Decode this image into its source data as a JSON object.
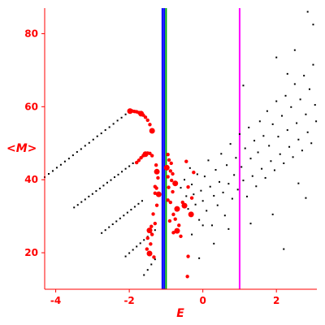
{
  "chart_data": {
    "type": "scatter",
    "xlabel": "E",
    "ylabel": "<M>",
    "xlim": [
      -4.3,
      3.1
    ],
    "ylim": [
      10,
      87
    ],
    "x_ticks": [
      -4,
      -2,
      0,
      2
    ],
    "y_ticks": [
      20,
      40,
      60,
      80
    ],
    "tick_labels": {
      "x": [
        "-4",
        "-2",
        "0",
        "2"
      ],
      "y": [
        "20",
        "40",
        "60",
        "80"
      ]
    },
    "grid": false,
    "legend": "none",
    "colors": {
      "axis": "#ff0000",
      "curve_points": "#000000",
      "highlight_points": "#ff0000",
      "scatter_points": "#000000",
      "line_blue": "#0000ff",
      "line_green": "#00aa00",
      "line_magenta": "#ff00ff"
    },
    "vertical_lines": [
      {
        "x": -1.1,
        "color": "#0000ff"
      },
      {
        "x": -1.05,
        "color": "#0000ff"
      },
      {
        "x": -1.0,
        "color": "#00aa00"
      },
      {
        "x": 1.0,
        "color": "#ff00ff"
      }
    ],
    "series": [
      {
        "color": "#000000",
        "marker": "dot",
        "points": [
          [
            -4.3,
            40.7
          ],
          [
            -4.19,
            41.6
          ],
          [
            -4.08,
            42.4
          ],
          [
            -3.97,
            43.3
          ],
          [
            -3.86,
            44.1
          ],
          [
            -3.75,
            45.0
          ],
          [
            -3.64,
            45.8
          ],
          [
            -3.53,
            46.7
          ],
          [
            -3.42,
            47.6
          ],
          [
            -3.31,
            48.4
          ],
          [
            -3.2,
            49.3
          ],
          [
            -3.09,
            50.1
          ],
          [
            -2.98,
            51.0
          ],
          [
            -2.87,
            51.9
          ],
          [
            -2.76,
            52.7
          ],
          [
            -2.65,
            53.6
          ],
          [
            -2.54,
            54.4
          ],
          [
            -2.43,
            55.3
          ],
          [
            -2.32,
            56.2
          ],
          [
            -2.21,
            57.0
          ],
          [
            -2.1,
            57.9
          ],
          [
            -2.0,
            58.8
          ],
          [
            -3.5,
            32.4
          ],
          [
            -3.4,
            33.1
          ],
          [
            -3.3,
            33.9
          ],
          [
            -3.2,
            34.6
          ],
          [
            -3.1,
            35.4
          ],
          [
            -3.0,
            36.1
          ],
          [
            -2.9,
            36.9
          ],
          [
            -2.8,
            37.6
          ],
          [
            -2.7,
            38.4
          ],
          [
            -2.6,
            39.2
          ],
          [
            -2.5,
            39.9
          ],
          [
            -2.4,
            40.7
          ],
          [
            -2.3,
            41.4
          ],
          [
            -2.2,
            42.2
          ],
          [
            -2.1,
            43.0
          ],
          [
            -2.0,
            43.7
          ],
          [
            -1.9,
            44.5
          ],
          [
            -2.75,
            25.4
          ],
          [
            -2.65,
            26.2
          ],
          [
            -2.55,
            27.0
          ],
          [
            -2.45,
            27.8
          ],
          [
            -2.35,
            28.6
          ],
          [
            -2.25,
            29.4
          ],
          [
            -2.15,
            30.2
          ],
          [
            -2.05,
            31.0
          ],
          [
            -1.95,
            31.8
          ],
          [
            -1.85,
            32.6
          ],
          [
            -1.75,
            33.4
          ],
          [
            -1.65,
            34.2
          ],
          [
            -2.1,
            19.0
          ],
          [
            -2.0,
            19.9
          ],
          [
            -1.9,
            20.8
          ],
          [
            -1.8,
            21.7
          ],
          [
            -1.7,
            22.6
          ],
          [
            -1.6,
            23.5
          ],
          [
            -1.5,
            24.4
          ],
          [
            -1.4,
            25.3
          ],
          [
            -1.3,
            26.2
          ],
          [
            -1.6,
            13.9
          ],
          [
            -1.5,
            15.3
          ],
          [
            -1.4,
            16.8
          ],
          [
            -1.3,
            18.2
          ]
        ]
      },
      {
        "color": "#ff0000",
        "marker": "circle",
        "points": [
          [
            -1.98,
            58.8
          ],
          [
            -1.92,
            58.8
          ],
          [
            -1.86,
            58.7
          ],
          [
            -1.8,
            58.6
          ],
          [
            -1.74,
            58.4
          ],
          [
            -1.68,
            58.1
          ],
          [
            -1.62,
            57.7
          ],
          [
            -1.56,
            57.1
          ],
          [
            -1.5,
            56.3
          ],
          [
            -1.44,
            55.1
          ],
          [
            -1.38,
            53.4
          ],
          [
            -1.8,
            44.7
          ],
          [
            -1.74,
            45.3
          ],
          [
            -1.68,
            46.0
          ],
          [
            -1.62,
            46.6
          ],
          [
            -1.56,
            47.0
          ],
          [
            -1.5,
            47.3
          ],
          [
            -1.44,
            47.2
          ],
          [
            -1.38,
            46.6
          ],
          [
            -1.27,
            44.0
          ],
          [
            -1.25,
            42.2
          ],
          [
            -1.22,
            40.5
          ],
          [
            -1.3,
            38.1
          ],
          [
            -1.26,
            37.7
          ],
          [
            -1.3,
            36.3
          ],
          [
            -1.2,
            36.0
          ],
          [
            -1.25,
            33.0
          ],
          [
            -1.35,
            30.6
          ],
          [
            -1.3,
            28.0
          ],
          [
            -1.4,
            27.2
          ],
          [
            -1.45,
            26.1
          ],
          [
            -1.38,
            25.0
          ],
          [
            -1.5,
            24.0
          ],
          [
            -1.42,
            22.4
          ],
          [
            -1.52,
            21.0
          ],
          [
            -1.45,
            19.8
          ],
          [
            -1.33,
            18.8
          ],
          [
            -0.95,
            46.9
          ],
          [
            -0.92,
            45.4
          ],
          [
            -0.86,
            44.5
          ],
          [
            -0.98,
            43.3
          ],
          [
            -0.88,
            42.4
          ],
          [
            -0.82,
            41.6
          ],
          [
            -0.95,
            40.8
          ],
          [
            -0.85,
            39.8
          ],
          [
            -0.75,
            39.0
          ],
          [
            -0.93,
            37.9
          ],
          [
            -0.82,
            36.7
          ],
          [
            -0.95,
            34.4
          ],
          [
            -0.88,
            33.8
          ],
          [
            -0.7,
            32.0
          ],
          [
            -0.8,
            30.5
          ],
          [
            -0.75,
            29.2
          ],
          [
            -0.9,
            28.7
          ],
          [
            -0.65,
            27.5
          ],
          [
            -0.7,
            26.0
          ],
          [
            -0.8,
            25.5
          ],
          [
            -0.6,
            24.5
          ],
          [
            -0.4,
            19.0
          ],
          [
            -0.42,
            13.5
          ],
          [
            -0.32,
            30.5
          ],
          [
            -0.25,
            42.0
          ],
          [
            -0.4,
            38.0
          ],
          [
            -0.3,
            35.0
          ],
          [
            -0.55,
            33.8
          ],
          [
            -0.5,
            32.9
          ],
          [
            -0.45,
            45.0
          ]
        ]
      },
      {
        "color": "#000000",
        "marker": "dot",
        "points": [
          [
            -0.6,
            37.8
          ],
          [
            -0.5,
            40.0
          ],
          [
            -0.45,
            35.5
          ],
          [
            -0.4,
            32.0
          ],
          [
            -0.35,
            43.2
          ],
          [
            -0.3,
            38.7
          ],
          [
            -0.25,
            36.0
          ],
          [
            -0.2,
            33.2
          ],
          [
            -0.15,
            41.5
          ],
          [
            -0.1,
            29.0
          ],
          [
            -0.05,
            37.0
          ],
          [
            0.0,
            34.2
          ],
          [
            0.05,
            40.9
          ],
          [
            0.1,
            31.5
          ],
          [
            0.15,
            45.3
          ],
          [
            0.2,
            38.1
          ],
          [
            0.25,
            27.5
          ],
          [
            0.3,
            35.6
          ],
          [
            0.35,
            42.7
          ],
          [
            0.4,
            33.0
          ],
          [
            0.45,
            39.4
          ],
          [
            0.5,
            47.1
          ],
          [
            0.55,
            36.5
          ],
          [
            0.6,
            30.2
          ],
          [
            0.65,
            44.0
          ],
          [
            0.7,
            38.9
          ],
          [
            0.75,
            49.8
          ],
          [
            0.8,
            34.8
          ],
          [
            0.85,
            41.3
          ],
          [
            0.9,
            46.0
          ],
          [
            0.95,
            37.3
          ],
          [
            1.0,
            52.5
          ],
          [
            1.05,
            43.5
          ],
          [
            1.1,
            39.8
          ],
          [
            1.15,
            48.6
          ],
          [
            1.2,
            35.4
          ],
          [
            1.25,
            54.3
          ],
          [
            1.3,
            45.8
          ],
          [
            1.35,
            41.0
          ],
          [
            1.4,
            50.7
          ],
          [
            1.45,
            38.2
          ],
          [
            1.5,
            47.5
          ],
          [
            1.55,
            56.0
          ],
          [
            1.6,
            43.0
          ],
          [
            1.65,
            52.0
          ],
          [
            1.7,
            40.5
          ],
          [
            1.75,
            58.8
          ],
          [
            1.8,
            49.3
          ],
          [
            1.85,
            45.1
          ],
          [
            1.9,
            55.2
          ],
          [
            1.95,
            42.6
          ],
          [
            2.0,
            61.5
          ],
          [
            2.05,
            51.8
          ],
          [
            2.1,
            47.0
          ],
          [
            2.15,
            57.5
          ],
          [
            2.2,
            44.5
          ],
          [
            2.25,
            63.0
          ],
          [
            2.3,
            53.6
          ],
          [
            2.35,
            49.0
          ],
          [
            2.4,
            59.9
          ],
          [
            2.45,
            46.2
          ],
          [
            2.5,
            66.2
          ],
          [
            2.55,
            55.5
          ],
          [
            2.6,
            51.0
          ],
          [
            2.65,
            62.0
          ],
          [
            2.7,
            48.0
          ],
          [
            2.75,
            68.5
          ],
          [
            2.8,
            57.9
          ],
          [
            2.85,
            53.0
          ],
          [
            2.9,
            64.8
          ],
          [
            2.95,
            50.0
          ],
          [
            3.0,
            71.5
          ],
          [
            3.05,
            60.5
          ],
          [
            3.08,
            56.0
          ],
          [
            2.85,
            86.0
          ],
          [
            3.0,
            82.5
          ],
          [
            2.5,
            75.5
          ],
          [
            2.3,
            69.0
          ],
          [
            1.1,
            65.8
          ],
          [
            2.0,
            73.5
          ],
          [
            2.8,
            35.0
          ],
          [
            2.2,
            21.0
          ],
          [
            -0.1,
            18.5
          ],
          [
            0.3,
            22.5
          ],
          [
            0.7,
            26.5
          ],
          [
            1.9,
            30.5
          ],
          [
            2.6,
            39.0
          ],
          [
            1.3,
            28.0
          ],
          [
            0.0,
            27.5
          ],
          [
            -0.3,
            25.0
          ]
        ]
      }
    ]
  }
}
